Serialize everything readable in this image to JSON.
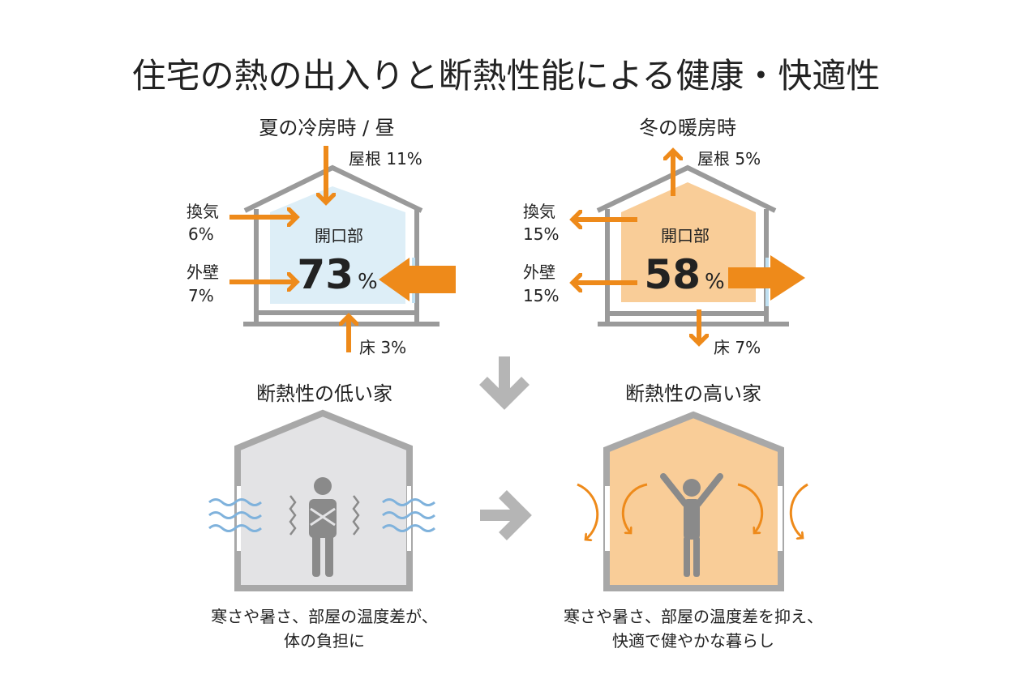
{
  "title": "住宅の熱の出入りと断熱性能による健康・快適性",
  "summer": {
    "heading": "夏の冷房時 / 昼",
    "roof": "屋根 11%",
    "vent_label": "換気",
    "vent_value": "6%",
    "wall_label": "外壁",
    "wall_value": "7%",
    "opening_label": "開口部",
    "opening_value": "73",
    "opening_unit": "%",
    "floor": "床 3%"
  },
  "winter": {
    "heading": "冬の暖房時",
    "roof": "屋根 5%",
    "vent_label": "換気",
    "vent_value": "15%",
    "wall_label": "外壁",
    "wall_value": "15%",
    "opening_label": "開口部",
    "opening_value": "58",
    "opening_unit": "%",
    "floor": "床 7%"
  },
  "low": {
    "heading": "断熱性の低い家",
    "caption_1": "寒さや暑さ、部屋の温度差が、",
    "caption_2": "体の負担に"
  },
  "high": {
    "heading": "断熱性の高い家",
    "caption_1": "寒さや暑さ、部屋の温度差を抑え、",
    "caption_2": "快適で健やかな暮らし"
  },
  "colors": {
    "orange": "#ee8a1a",
    "gray": "#9a9a9a",
    "blue_fill": "#ddeef7",
    "peach_fill": "#f9cd98",
    "wave": "#7fb2dc"
  }
}
